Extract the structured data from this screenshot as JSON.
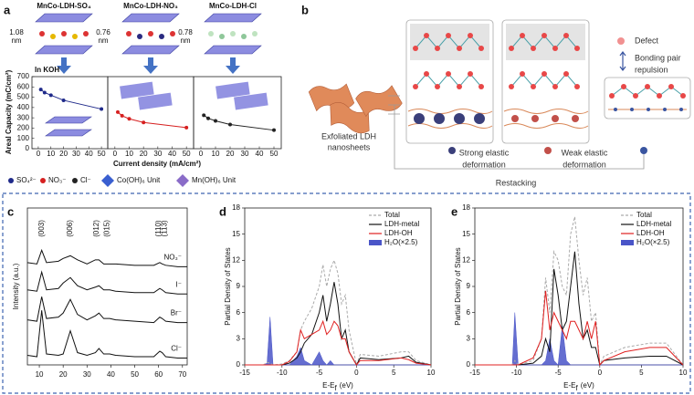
{
  "panel_labels": [
    "a",
    "b",
    "c",
    "d",
    "e"
  ],
  "structures": [
    {
      "name": "MnCo-LDH-SO₄",
      "spacing": "1.08",
      "unit": "nm"
    },
    {
      "name": "MnCo-LDH-NO₃",
      "spacing": "0.76",
      "unit": "nm"
    },
    {
      "name": "MnCo-LDH-Cl",
      "spacing": "0.78",
      "unit": "nm"
    }
  ],
  "unit_legend": [
    "Co(OH)₆ Unit",
    "Mn(OH)₆ Unit"
  ],
  "diagram_b": {
    "exfoliated": [
      "Exfoliated LDH",
      "nanosheets"
    ],
    "strong": [
      "Strong elastic",
      "deformation"
    ],
    "weak": [
      "Weak elastic",
      "deformation"
    ],
    "restacking": "Restacking",
    "defect": "Defect",
    "repulsion": [
      "Bonding pair",
      "repulsion"
    ]
  },
  "chart_data": [
    {
      "type": "line",
      "annotation": "In KOH",
      "y_label": "Areal Capacity (mC/cm²)",
      "x_label": "Current density (mA/cm²)",
      "xlim": [
        -5,
        55
      ],
      "xticks": [
        0,
        10,
        20,
        30,
        40,
        50
      ],
      "ylim": [
        0,
        700
      ],
      "yticks": [
        0,
        100,
        200,
        300,
        400,
        500,
        600,
        700
      ],
      "series": [
        {
          "name": "SO₄²⁻",
          "color": "#1f2a8a",
          "x": [
            2,
            5,
            10,
            20,
            50
          ],
          "values": [
            575,
            545,
            520,
            470,
            385
          ]
        },
        {
          "name": "NO₃⁻",
          "color": "#d62020",
          "x": [
            2,
            5,
            10,
            20,
            50
          ],
          "values": [
            355,
            320,
            290,
            255,
            205
          ]
        },
        {
          "name": "Cl⁻",
          "color": "#222222",
          "x": [
            2,
            5,
            10,
            20,
            50
          ],
          "values": [
            325,
            295,
            270,
            235,
            180
          ]
        }
      ]
    },
    {
      "type": "line",
      "y_label": "Intensity (a.u.)",
      "xlim": [
        5,
        72
      ],
      "xticks": [
        10,
        20,
        30,
        40,
        50,
        60,
        70
      ],
      "ylim": [
        0,
        115
      ],
      "x": [
        5,
        9,
        11,
        13,
        18,
        20,
        23,
        26,
        30,
        33.5,
        35,
        37,
        39.5,
        42,
        50,
        58,
        60.5,
        61.5,
        63,
        68,
        72
      ],
      "peaks": [
        {
          "label": "(003)",
          "x": 11
        },
        {
          "label": "(006)",
          "x": 23
        },
        {
          "label": "(012)",
          "x": 34
        },
        {
          "label": "(015)",
          "x": 38.5
        },
        {
          "label": "(110)",
          "x": 60
        },
        {
          "label": "(113)",
          "x": 62.5
        }
      ],
      "series": [
        {
          "name": "NO₃⁻",
          "color": "#111111",
          "values": [
            75,
            74,
            84,
            75,
            76,
            78,
            80,
            77,
            74,
            77,
            77,
            74,
            74,
            74,
            73,
            73,
            75,
            74,
            73,
            72,
            72
          ]
        },
        {
          "name": "I⁻",
          "color": "#111111",
          "values": [
            55,
            54,
            68,
            55,
            56,
            60,
            64,
            58,
            55,
            57,
            58,
            55,
            55,
            54,
            53,
            53,
            56,
            55,
            53,
            52,
            52
          ]
        },
        {
          "name": "Br⁻",
          "color": "#111111",
          "values": [
            33,
            32,
            50,
            34,
            35,
            38,
            48,
            37,
            33,
            36,
            38,
            34,
            34,
            33,
            32,
            31,
            35,
            34,
            32,
            31,
            31
          ]
        },
        {
          "name": "Cl⁻",
          "color": "#111111",
          "values": [
            7,
            6,
            40,
            8,
            7,
            8,
            25,
            9,
            7,
            9,
            12,
            8,
            8,
            7,
            6,
            6,
            10,
            9,
            6,
            5,
            5
          ]
        }
      ]
    },
    {
      "type": "line",
      "y_label": "Partial Density of States",
      "x_label": {
        "main": "E-E",
        "sub": "f",
        "unit": "(eV)"
      },
      "xlim": [
        -15,
        10
      ],
      "xticks": [
        -15,
        -10,
        -5,
        0,
        5,
        10
      ],
      "ylim": [
        0,
        18
      ],
      "yticks": [
        0,
        3,
        6,
        9,
        12,
        15,
        18
      ],
      "x": [
        -15,
        -12.5,
        -12,
        -11.6,
        -11.2,
        -10,
        -9,
        -8,
        -7.5,
        -7,
        -6,
        -5,
        -4.5,
        -4,
        -3.5,
        -3,
        -2.5,
        -2,
        -1.5,
        -1,
        0,
        0.5,
        3,
        6,
        7,
        8,
        10
      ],
      "series": [
        {
          "name": "Total",
          "color": "#aaaaaa",
          "style": "dashed",
          "values": [
            0,
            0,
            0.3,
            0.2,
            0,
            0.1,
            0.5,
            1.5,
            4,
            5,
            6.5,
            9,
            11.5,
            9,
            11,
            12,
            10.5,
            7,
            8,
            4,
            0,
            1.2,
            1,
            1.5,
            1.5,
            0.5,
            0
          ]
        },
        {
          "name": "LDH-metal",
          "color": "#111111",
          "style": "solid",
          "values": [
            0,
            0,
            0,
            0,
            0,
            0,
            0.2,
            0.8,
            1.5,
            2.5,
            3.5,
            6,
            8,
            5,
            7,
            9.5,
            7,
            3,
            4,
            1.5,
            0,
            0.8,
            0.6,
            0.8,
            1,
            0.3,
            0
          ]
        },
        {
          "name": "LDH-OH",
          "color": "#e02020",
          "style": "solid",
          "values": [
            0,
            0,
            0,
            0,
            0,
            0,
            0.4,
            1.5,
            4,
            3,
            3.5,
            4,
            5,
            3.5,
            4,
            5,
            4.5,
            3,
            3,
            1.5,
            0,
            0.5,
            0.5,
            0.8,
            0.6,
            0.2,
            0
          ]
        },
        {
          "name": "H₂O(×2.5)",
          "color": "#4a55c8",
          "style": "fill",
          "values": [
            0,
            0,
            0.2,
            5.5,
            0,
            0,
            0,
            1,
            2,
            0.5,
            0,
            1.5,
            0.5,
            0,
            0.5,
            0,
            0,
            0,
            0,
            0,
            0,
            0,
            0,
            0,
            0,
            0,
            0
          ]
        }
      ]
    },
    {
      "type": "line",
      "y_label": "Partial Density of States",
      "x_label": {
        "main": "E-E",
        "sub": "f",
        "unit": "(eV)"
      },
      "xlim": [
        -15,
        10
      ],
      "xticks": [
        -15,
        -10,
        -5,
        0,
        5,
        10
      ],
      "ylim": [
        0,
        18
      ],
      "yticks": [
        0,
        3,
        6,
        9,
        12,
        15,
        18
      ],
      "x": [
        -15,
        -11,
        -10.5,
        -10.2,
        -9.8,
        -8,
        -7,
        -6.5,
        -6,
        -5.5,
        -5,
        -4.5,
        -4,
        -3.5,
        -3,
        -2.5,
        -2,
        -1.5,
        -1,
        -0.5,
        0,
        0.5,
        3,
        6,
        8,
        10
      ],
      "series": [
        {
          "name": "Total",
          "color": "#aaaaaa",
          "style": "dashed",
          "values": [
            0,
            0,
            0,
            0.5,
            0,
            0.5,
            3,
            10,
            6,
            13,
            12,
            9,
            8,
            15,
            17,
            12,
            8,
            10,
            5,
            6,
            0,
            1,
            2,
            2.5,
            2.5,
            0
          ]
        },
        {
          "name": "LDH-metal",
          "color": "#111111",
          "style": "solid",
          "values": [
            0,
            0,
            0,
            0,
            0,
            0.2,
            1,
            3,
            1.5,
            11,
            8,
            4,
            5,
            9,
            13,
            7,
            3,
            4,
            2,
            2,
            0,
            0.5,
            0.8,
            1,
            1,
            0
          ]
        },
        {
          "name": "LDH-OH",
          "color": "#e02020",
          "style": "solid",
          "values": [
            0,
            0,
            0,
            0,
            0,
            0.8,
            3,
            8.5,
            4,
            6,
            5,
            4,
            3,
            5,
            5,
            4,
            3,
            5,
            3,
            5,
            0,
            0.5,
            1.5,
            2,
            2,
            0
          ]
        },
        {
          "name": "H₂O(×2.5)",
          "color": "#4a55c8",
          "style": "fill",
          "values": [
            0,
            0,
            0,
            6,
            0,
            0,
            0,
            0.5,
            3,
            0.5,
            0,
            4.5,
            0.5,
            0,
            0,
            0,
            0,
            0,
            0,
            0,
            0,
            0,
            0,
            0,
            0,
            0
          ]
        }
      ]
    }
  ]
}
